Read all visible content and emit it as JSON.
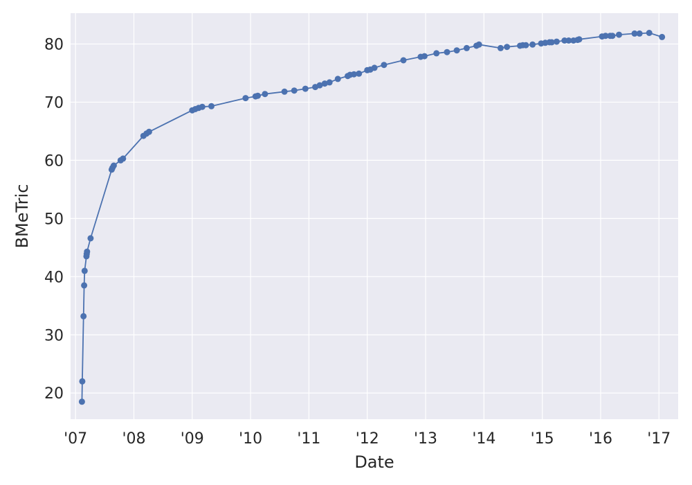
{
  "chart_data": {
    "type": "line",
    "xlabel": "Date",
    "ylabel": "BMeTric",
    "xlim": [
      "2006-12-01",
      "2017-05-01"
    ],
    "ylim": [
      15.5,
      85.3
    ],
    "x_ticks": [
      {
        "date": "2007-01-01",
        "label": "'07"
      },
      {
        "date": "2008-01-01",
        "label": "'08"
      },
      {
        "date": "2009-01-01",
        "label": "'09"
      },
      {
        "date": "2010-01-01",
        "label": "'10"
      },
      {
        "date": "2011-01-01",
        "label": "'11"
      },
      {
        "date": "2012-01-01",
        "label": "'12"
      },
      {
        "date": "2013-01-01",
        "label": "'13"
      },
      {
        "date": "2014-01-01",
        "label": "'14"
      },
      {
        "date": "2015-01-01",
        "label": "'15"
      },
      {
        "date": "2016-01-01",
        "label": "'16"
      },
      {
        "date": "2017-01-01",
        "label": "'17"
      }
    ],
    "y_ticks": [
      20,
      30,
      40,
      50,
      60,
      70,
      80
    ],
    "grid": true,
    "style": {
      "line_color": "#4c72b0",
      "background": "#eaeaf2",
      "grid_color": "#ffffff"
    },
    "series": [
      {
        "x": [
          "2007-02-10",
          "2007-02-12",
          "2007-02-20",
          "2007-02-24",
          "2007-02-27",
          "2007-03-10",
          "2007-03-12",
          "2007-03-14",
          "2007-04-05",
          "2007-08-15",
          "2007-08-20",
          "2007-08-28",
          "2007-10-10",
          "2007-10-25",
          "2008-03-01",
          "2008-03-20",
          "2008-04-05",
          "2009-01-01",
          "2009-01-20",
          "2009-02-10",
          "2009-03-05",
          "2009-05-01",
          "2009-12-01",
          "2010-02-01",
          "2010-02-15",
          "2010-04-01",
          "2010-08-01",
          "2010-10-01",
          "2010-12-10",
          "2011-02-10",
          "2011-03-10",
          "2011-04-10",
          "2011-05-10",
          "2011-07-01",
          "2011-09-01",
          "2011-09-15",
          "2011-10-10",
          "2011-11-10",
          "2012-01-01",
          "2012-01-20",
          "2012-02-15",
          "2012-04-15",
          "2012-08-15",
          "2012-12-01",
          "2012-12-25",
          "2013-03-10",
          "2013-05-15",
          "2013-07-15",
          "2013-09-15",
          "2013-11-15",
          "2013-12-01",
          "2014-04-15",
          "2014-05-25",
          "2014-08-15",
          "2014-09-01",
          "2014-09-20",
          "2014-11-01",
          "2014-12-25",
          "2015-01-20",
          "2015-02-15",
          "2015-03-01",
          "2015-04-01",
          "2015-05-20",
          "2015-06-15",
          "2015-07-15",
          "2015-08-10",
          "2015-08-20",
          "2016-01-10",
          "2016-02-01",
          "2016-03-01",
          "2016-03-15",
          "2016-04-25",
          "2016-08-01",
          "2016-09-01",
          "2016-11-01",
          "2017-01-20"
        ],
        "y": [
          18.5,
          22.0,
          33.2,
          38.5,
          41.0,
          43.5,
          43.9,
          44.3,
          46.6,
          58.4,
          58.7,
          59.1,
          60.0,
          60.3,
          64.2,
          64.6,
          64.9,
          68.6,
          68.8,
          69.0,
          69.2,
          69.3,
          70.7,
          71.0,
          71.1,
          71.4,
          71.8,
          72.0,
          72.3,
          72.6,
          72.9,
          73.2,
          73.4,
          74.0,
          74.5,
          74.7,
          74.8,
          74.9,
          75.5,
          75.6,
          75.9,
          76.4,
          77.2,
          77.8,
          77.9,
          78.4,
          78.6,
          78.9,
          79.3,
          79.7,
          79.9,
          79.3,
          79.5,
          79.7,
          79.8,
          79.8,
          79.9,
          80.1,
          80.2,
          80.3,
          80.3,
          80.4,
          80.6,
          80.6,
          80.6,
          80.7,
          80.8,
          81.3,
          81.4,
          81.4,
          81.4,
          81.6,
          81.8,
          81.8,
          81.9,
          81.2
        ]
      }
    ]
  }
}
